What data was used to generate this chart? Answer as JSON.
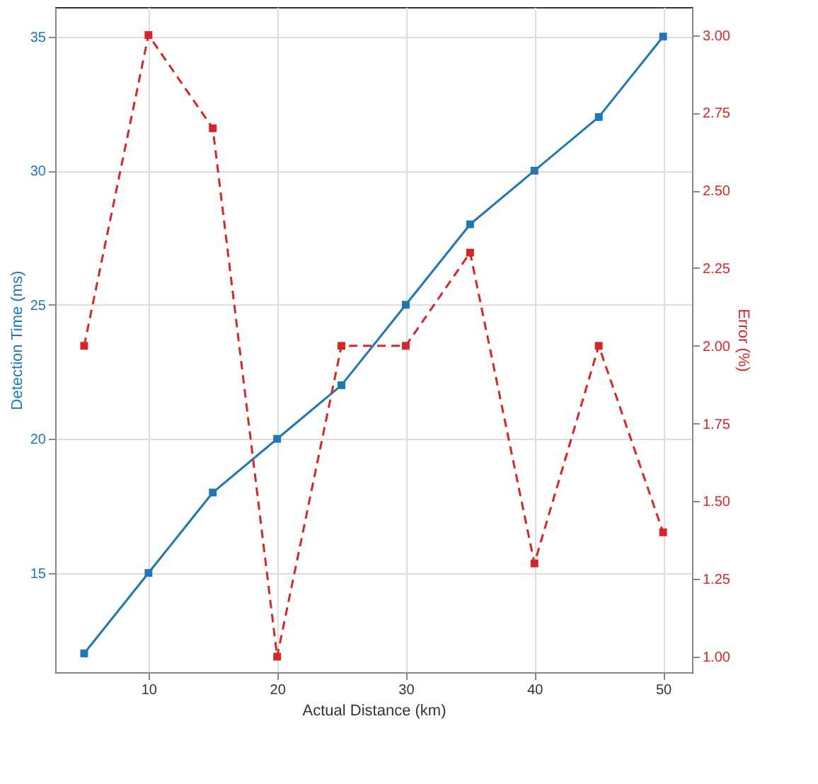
{
  "chart_data": {
    "type": "line",
    "xlabel": "Actual Distance (km)",
    "ylabel": "Detection Time (ms)",
    "y2label": "Error (%)",
    "x": [
      5,
      10,
      15,
      20,
      25,
      30,
      35,
      40,
      45,
      50
    ],
    "series": [
      {
        "color": "#1f77b4",
        "values": [
          12,
          15,
          18,
          20,
          22,
          25,
          28,
          30,
          32,
          35
        ],
        "line_style": "solid"
      },
      {
        "color": "#d62728",
        "values": [
          2.0,
          3.0,
          2.7,
          1.0,
          2.0,
          2.0,
          2.3,
          1.3,
          2.0,
          1.4
        ],
        "axis": "y2",
        "line_style": "dashed"
      }
    ],
    "xlim": [
      2.75,
      52.25
    ],
    "xticks": [
      10,
      20,
      30,
      40,
      50
    ],
    "ylim": [
      11.3,
      36.1
    ],
    "yticks": [
      15,
      20,
      25,
      30,
      35
    ],
    "y2lim": [
      0.95,
      3.09
    ],
    "y2ticks": [
      {
        "value": 1,
        "label": "1.00"
      },
      {
        "value": 1.25,
        "label": "1.25"
      },
      {
        "value": 1.5,
        "label": "1.50"
      },
      {
        "value": 1.75,
        "label": "1.75"
      },
      {
        "value": 2,
        "label": "2.00"
      },
      {
        "value": 2.25,
        "label": "2.25"
      },
      {
        "value": 2.5,
        "label": "2.50"
      },
      {
        "value": 2.75,
        "label": "2.75"
      },
      {
        "value": 3,
        "label": "3.00"
      }
    ],
    "grid": true,
    "marker": "square"
  }
}
